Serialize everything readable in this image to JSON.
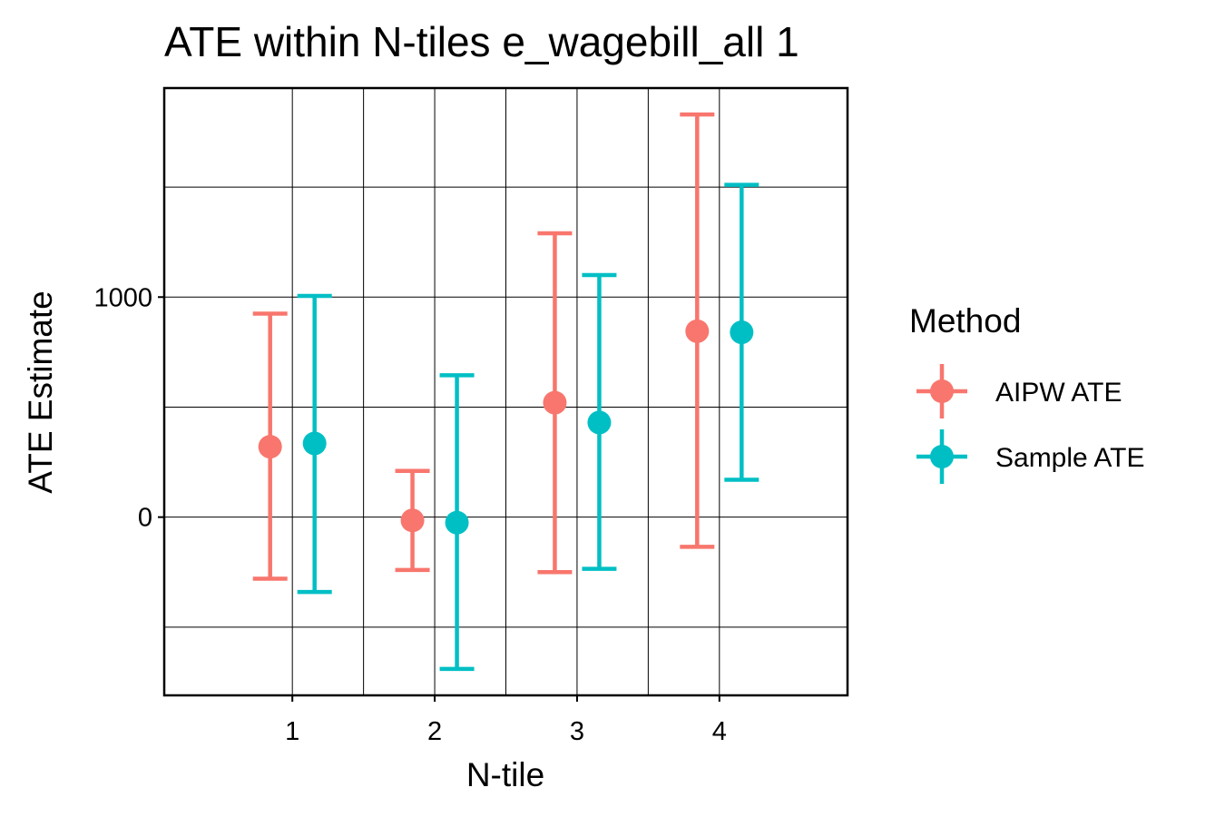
{
  "chart_data": {
    "type": "errorbar",
    "title": "ATE within N-tiles e_wagebill_all 1",
    "xlabel": "N-tile",
    "ylabel": "ATE Estimate",
    "categories": [
      "1",
      "2",
      "3",
      "4"
    ],
    "y_ticks": [
      0,
      1000
    ],
    "y_tick_labels": [
      "0",
      "1000"
    ],
    "ylim": [
      -810,
      1950
    ],
    "grid": true,
    "legend": {
      "title": "Method",
      "position": "right"
    },
    "series": [
      {
        "name": "AIPW ATE",
        "color": "#F8766D",
        "points": [
          {
            "x": "1",
            "estimate": 320,
            "lower": -280,
            "upper": 925
          },
          {
            "x": "2",
            "estimate": -15,
            "lower": -240,
            "upper": 210
          },
          {
            "x": "3",
            "estimate": 520,
            "lower": -250,
            "upper": 1290
          },
          {
            "x": "4",
            "estimate": 845,
            "lower": -135,
            "upper": 1830
          }
        ]
      },
      {
        "name": "Sample ATE",
        "color": "#00BFC4",
        "points": [
          {
            "x": "1",
            "estimate": 335,
            "lower": -340,
            "upper": 1005
          },
          {
            "x": "2",
            "estimate": -25,
            "lower": -690,
            "upper": 645
          },
          {
            "x": "3",
            "estimate": 430,
            "lower": -235,
            "upper": 1100
          },
          {
            "x": "4",
            "estimate": 840,
            "lower": 170,
            "upper": 1510
          }
        ]
      }
    ]
  }
}
